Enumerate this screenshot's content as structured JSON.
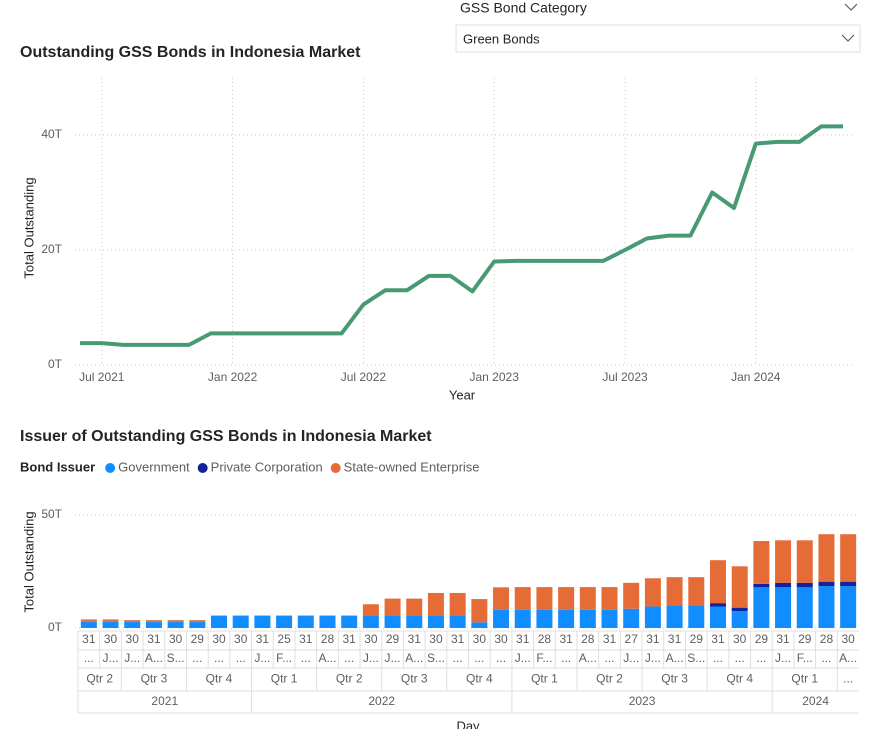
{
  "slicer": {
    "title": "GSS Bond Category",
    "selected": "Green Bonds"
  },
  "chart_data": [
    {
      "type": "line",
      "title": "Outstanding GSS Bonds in Indonesia Market",
      "x_label": "Year",
      "y_label": "Total Outstanding",
      "color": "#479a73",
      "x": [
        "Jun 2021",
        "Jul 2021",
        "Aug 2021",
        "Sep 2021",
        "Oct 2021",
        "Nov 2021",
        "Dec 2021",
        "Jan 2022",
        "Feb 2022",
        "Mar 2022",
        "Apr 2022",
        "May 2022",
        "Jun 2022",
        "Jul 2022",
        "Aug 2022",
        "Sep 2022",
        "Oct 2022",
        "Nov 2022",
        "Dec 2022",
        "Jan 2023",
        "Feb 2023",
        "Mar 2023",
        "Apr 2023",
        "May 2023",
        "Jun 2023",
        "Jul 2023",
        "Aug 2023",
        "Sep 2023",
        "Oct 2023",
        "Nov 2023",
        "Dec 2023",
        "Jan 2024",
        "Feb 2024",
        "Mar 2024",
        "Apr 2024",
        "May 2024"
      ],
      "values": [
        3.8,
        3.8,
        3.5,
        3.5,
        3.5,
        3.5,
        5.5,
        5.5,
        5.5,
        5.5,
        5.5,
        5.5,
        5.5,
        10.5,
        13.0,
        13.0,
        15.5,
        15.5,
        12.8,
        18.0,
        18.1,
        18.1,
        18.1,
        18.1,
        18.1,
        20.0,
        22.0,
        22.5,
        22.5,
        30.0,
        27.3,
        38.5,
        38.8,
        38.8,
        41.5,
        41.5
      ],
      "xlim": [
        "Jun 2021",
        "May 2024"
      ],
      "xticks": [
        "Jul 2021",
        "Jan 2022",
        "Jul 2022",
        "Jan 2023",
        "Jul 2023",
        "Jan 2024"
      ],
      "ylim": [
        0,
        48
      ],
      "yticks": [
        {
          "value": 0,
          "label": "0T"
        },
        {
          "value": 20,
          "label": "20T"
        },
        {
          "value": 40,
          "label": "40T"
        }
      ],
      "grid": true
    },
    {
      "type": "bar",
      "stacked": true,
      "title": "Issuer of Outstanding GSS Bonds in Indonesia Market",
      "legend_title": "Bond Issuer",
      "x_label": "Day",
      "y_label": "Total Outstanding",
      "x_levels": {
        "day": [
          "31",
          "30",
          "30",
          "31",
          "30",
          "29",
          "30",
          "30",
          "31",
          "25",
          "31",
          "28",
          "31",
          "30",
          "29",
          "31",
          "30",
          "31",
          "30",
          "30",
          "31",
          "28",
          "31",
          "28",
          "31",
          "27",
          "31",
          "31",
          "29",
          "31",
          "30",
          "29",
          "31",
          "29",
          "28",
          "30"
        ],
        "month": [
          "...",
          "J...",
          "J...",
          "A...",
          "S...",
          "...",
          "...",
          "...",
          "J...",
          "F...",
          "...",
          "A...",
          "...",
          "J...",
          "J...",
          "A...",
          "S...",
          "...",
          "...",
          "...",
          "J...",
          "F...",
          "...",
          "A...",
          "...",
          "J...",
          "J...",
          "A...",
          "S...",
          "...",
          "...",
          "...",
          "J...",
          "F...",
          "...",
          "A..."
        ],
        "quarter": [
          "Qtr 2",
          "Qtr 2",
          "Qtr 3",
          "Qtr 3",
          "Qtr 3",
          "Qtr 4",
          "Qtr 4",
          "Qtr 4",
          "Qtr 1",
          "Qtr 1",
          "Qtr 1",
          "Qtr 2",
          "Qtr 2",
          "Qtr 2",
          "Qtr 3",
          "Qtr 3",
          "Qtr 3",
          "Qtr 4",
          "Qtr 4",
          "Qtr 4",
          "Qtr 1",
          "Qtr 1",
          "Qtr 1",
          "Qtr 2",
          "Qtr 2",
          "Qtr 2",
          "Qtr 3",
          "Qtr 3",
          "Qtr 3",
          "Qtr 4",
          "Qtr 4",
          "Qtr 4",
          "Qtr 1",
          "Qtr 1",
          "Qtr 1",
          "..."
        ],
        "year": [
          "2021",
          "2021",
          "2021",
          "2021",
          "2021",
          "2021",
          "2021",
          "2021",
          "2022",
          "2022",
          "2022",
          "2022",
          "2022",
          "2022",
          "2022",
          "2022",
          "2022",
          "2022",
          "2022",
          "2022",
          "2023",
          "2023",
          "2023",
          "2023",
          "2023",
          "2023",
          "2023",
          "2023",
          "2023",
          "2023",
          "2023",
          "2023",
          "2024",
          "2024",
          "2024",
          "2024"
        ]
      },
      "series": [
        {
          "name": "Government",
          "color": "#118dff",
          "values": [
            2.8,
            2.8,
            2.8,
            2.8,
            2.8,
            2.8,
            5.5,
            5.5,
            5.5,
            5.5,
            5.5,
            5.5,
            5.5,
            5.3,
            5.5,
            5.5,
            5.5,
            5.5,
            2.5,
            8.0,
            8.0,
            8.0,
            8.0,
            8.0,
            8.0,
            8.5,
            9.5,
            10.0,
            10.0,
            9.5,
            7.5,
            18.0,
            18.0,
            18.0,
            18.5,
            18.5
          ]
        },
        {
          "name": "Private Corporation",
          "color": "#12239e",
          "values": [
            0,
            0,
            0,
            0,
            0,
            0,
            0,
            0,
            0,
            0,
            0,
            0,
            0,
            0,
            0,
            0,
            0,
            0,
            0,
            0,
            0,
            0,
            0,
            0,
            0,
            0,
            0,
            0,
            0,
            1.5,
            1.5,
            1.5,
            2.0,
            2.0,
            2.0,
            2.0
          ]
        },
        {
          "name": "State-owned Enterprise",
          "color": "#e66c37",
          "values": [
            1.0,
            1.0,
            0.7,
            0.7,
            0.7,
            0.7,
            0,
            0,
            0,
            0,
            0,
            0,
            0,
            5.2,
            7.5,
            7.5,
            10.0,
            10.0,
            10.3,
            10.0,
            10.1,
            10.1,
            10.1,
            10.1,
            10.1,
            11.5,
            12.5,
            12.5,
            12.5,
            19.0,
            18.3,
            19.0,
            18.8,
            18.8,
            21.0,
            21.0
          ]
        }
      ],
      "ylim": [
        0,
        50
      ],
      "yticks": [
        {
          "value": 0,
          "label": "0T"
        },
        {
          "value": 50,
          "label": "50T"
        }
      ],
      "grid": true
    }
  ]
}
